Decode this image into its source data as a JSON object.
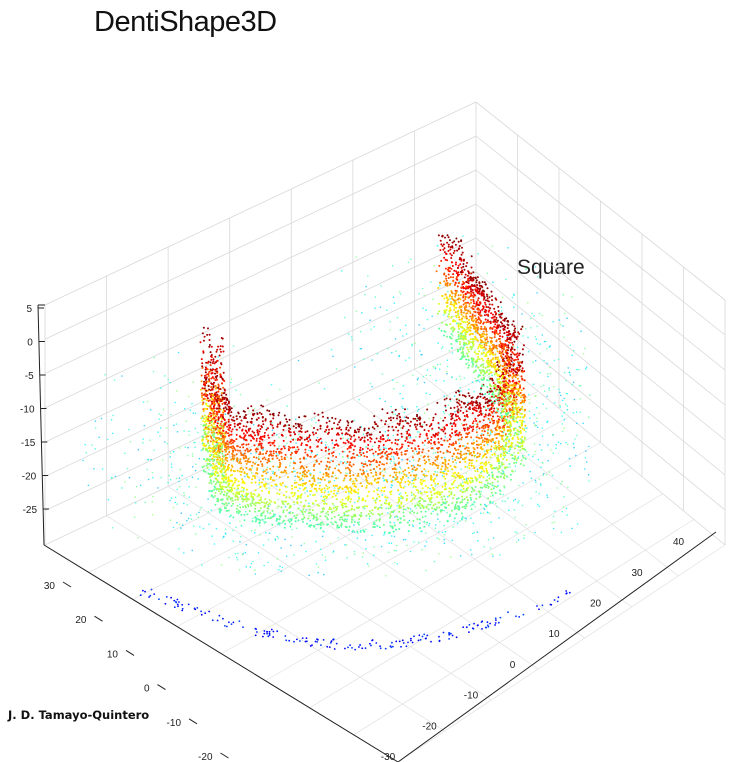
{
  "page": {
    "title": "DentiShape3D",
    "author": "J. D. Tamayo-Quintero"
  },
  "chart_data": {
    "type": "scatter",
    "subtype": "3d-point-cloud",
    "title": "DentiShape3D",
    "annotation": "Square",
    "xlabel": "",
    "ylabel": "",
    "zlabel": "",
    "x_ticks": [
      -30,
      -20,
      -10,
      0,
      10,
      20,
      30,
      40
    ],
    "y_ticks": [
      -20,
      -10,
      0,
      10,
      20,
      30
    ],
    "z_ticks": [
      5,
      0,
      -5,
      -10,
      -15,
      -20,
      -25
    ],
    "xlim": [
      -40,
      50
    ],
    "ylim": [
      -25,
      35
    ],
    "zlim": [
      -30,
      5
    ],
    "grid": true,
    "colormap": "jet",
    "colors": {
      "low": "#0000ff",
      "mid_low": "#00e5ff",
      "mid": "#fff000",
      "high": "#ff8000",
      "top": "#d00000"
    },
    "shape": "lower dental arch with square arch form"
  }
}
